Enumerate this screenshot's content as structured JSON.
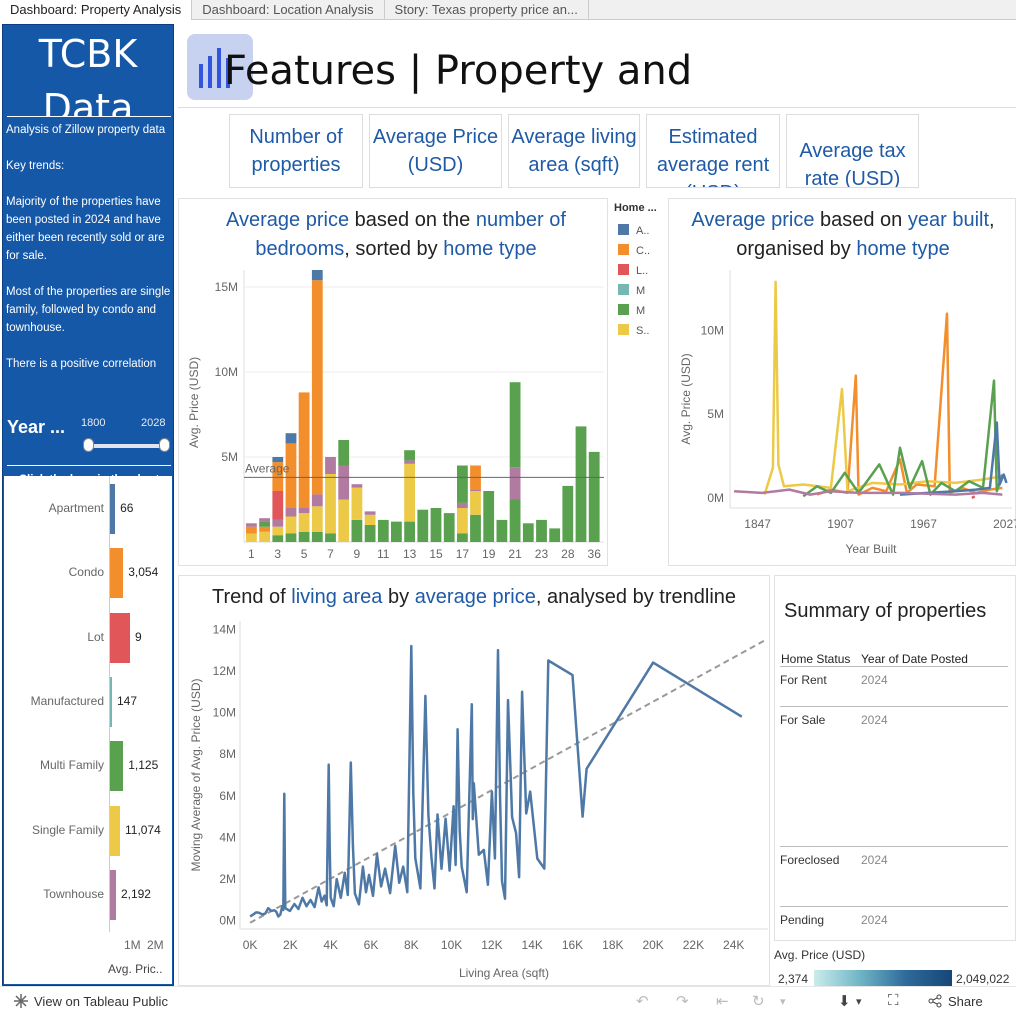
{
  "tabs": [
    "Dashboard: Property Analysis",
    "Dashboard: Location Analysis",
    "Story: Texas property price an..."
  ],
  "sidebar": {
    "brand": "TCBK Data",
    "intro": "Analysis of Zillow property data",
    "key_trends": "Key trends:",
    "trend1": "Majority of the properties have been posted in 2024 and have either been recently sold or are for sale.",
    "trend2": "Most of the properties are single family, followed by condo and townhouse.",
    "trend3": "There is a positive correlation",
    "year_label": "Year ...",
    "year_min": "1800",
    "year_max": "2028",
    "click_hint": "Click the bars in the chart below to filter by Home",
    "home_types": [
      {
        "name": "Apartment",
        "count": "66",
        "fraction": 0.19,
        "color": "#4e79a7"
      },
      {
        "name": "Condo",
        "count": "3,054",
        "fraction": 0.49,
        "color": "#f28e2b"
      },
      {
        "name": "Lot",
        "count": "9",
        "fraction": 0.74,
        "color": "#e15759"
      },
      {
        "name": "Manufactured",
        "count": "147",
        "fraction": 0.07,
        "color": "#76b7b2"
      },
      {
        "name": "Multi Family",
        "count": "1,125",
        "fraction": 0.49,
        "color": "#59a14f"
      },
      {
        "name": "Single Family",
        "count": "11,074",
        "fraction": 0.37,
        "color": "#edc948"
      },
      {
        "name": "Townhouse",
        "count": "2,192",
        "fraction": 0.22,
        "color": "#b07aa1"
      }
    ],
    "axis_ticks": [
      "1M",
      "2M"
    ],
    "axis_title": "Avg. Pric.."
  },
  "header": {
    "title_bold": "Features",
    "title_rest": "| Property and"
  },
  "kpis": [
    {
      "label": "Number of properties"
    },
    {
      "label": "Average Price (USD)"
    },
    {
      "label": "Average living area (sqft)"
    },
    {
      "label": "Estimated average rent (USD)"
    },
    {
      "label": "Average tax rate (USD)"
    }
  ],
  "bedroom_chart": {
    "title_parts": [
      "Average price",
      " based on the ",
      "number of bedrooms",
      ", sorted by ",
      "home type"
    ],
    "ylabel": "Avg. Price (USD)",
    "reference_label": "Average",
    "legend_title": "Home ...",
    "legend_items": [
      {
        "label": "A..",
        "color": "#4e79a7"
      },
      {
        "label": "C..",
        "color": "#f28e2b"
      },
      {
        "label": "L..",
        "color": "#e15759"
      },
      {
        "label": "M",
        "color": "#76b7b2"
      },
      {
        "label": "M",
        "color": "#59a14f"
      },
      {
        "label": "S..",
        "color": "#edc948"
      }
    ]
  },
  "year_chart": {
    "title_parts": [
      "Average price",
      " based on ",
      "year built",
      ",",
      "organised by ",
      "home type"
    ],
    "ylabel": "Avg. Price (USD)",
    "xlabel": "Year Built"
  },
  "trend_chart": {
    "title_parts": [
      "Trend of ",
      "living area",
      " by ",
      "average price",
      ", analysed by trendline"
    ],
    "ylabel": "Moving Average of Avg. Price (USD)",
    "xlabel": "Living Area (sqft)"
  },
  "summary": {
    "title": "Summary of properties",
    "col1": "Home Status",
    "col2": "Year of Date Posted",
    "rows": [
      {
        "status": "For Rent",
        "year": "2024"
      },
      {
        "status": "For Sale",
        "year": "2024"
      },
      {
        "status": "Foreclosed",
        "year": "2024"
      },
      {
        "status": "Pending",
        "year": "2024"
      }
    ],
    "legend_title": "Avg. Price (USD)",
    "legend_min": "2,374",
    "legend_max": "2,049,022"
  },
  "footer": {
    "tableau_link": "View on Tableau Public",
    "share": "Share"
  },
  "chart_data": [
    {
      "type": "bar",
      "title": "Average price based on the number of bedrooms, sorted by home type",
      "xlabel": "Number of bedrooms",
      "ylabel": "Avg. Price (USD)",
      "ylim": [
        0,
        16000000
      ],
      "yticks": [
        {
          "label": "15M",
          "value": 15000000
        },
        {
          "label": "10M",
          "value": 10000000
        },
        {
          "label": "5M",
          "value": 5000000
        }
      ],
      "xtick_labels": {
        "1": "1",
        "3": "3",
        "5": "5",
        "7": "7",
        "9": "9",
        "11": "11",
        "13": "13",
        "15": "15",
        "17": "17",
        "19": "19",
        "21": "21",
        "23": "23",
        "25": "28",
        "27": "36"
      },
      "reference_line": 3800000,
      "series_colors": {
        "A": "#4e79a7",
        "C": "#f28e2b",
        "L": "#e15759",
        "T": "#76b7b2",
        "M": "#59a14f",
        "S": "#edc948",
        "W": "#b07aa1"
      },
      "bars": [
        [
          [
            "S",
            0.5
          ],
          [
            "C",
            0.4
          ],
          [
            "W",
            0.2
          ]
        ],
        [
          [
            "S",
            0.6
          ],
          [
            "C",
            0.3
          ],
          [
            "M",
            0.3
          ],
          [
            "W",
            0.2
          ]
        ],
        [
          [
            "M",
            0.4
          ],
          [
            "S",
            0.5
          ],
          [
            "W",
            0.4
          ],
          [
            "L",
            1.7
          ],
          [
            "C",
            1.7
          ],
          [
            "A",
            0.3
          ]
        ],
        [
          [
            "M",
            0.5
          ],
          [
            "S",
            1.0
          ],
          [
            "W",
            0.5
          ],
          [
            "C",
            3.8
          ],
          [
            "A",
            0.6
          ]
        ],
        [
          [
            "M",
            0.6
          ],
          [
            "S",
            1.1
          ],
          [
            "W",
            0.3
          ],
          [
            "C",
            6.8
          ]
        ],
        [
          [
            "M",
            0.6
          ],
          [
            "S",
            1.5
          ],
          [
            "W",
            0.7
          ],
          [
            "C",
            12.6
          ],
          [
            "A",
            0.6
          ]
        ],
        [
          [
            "M",
            0.5
          ],
          [
            "S",
            3.5
          ],
          [
            "W",
            1.0
          ]
        ],
        [
          [
            "S",
            2.5
          ],
          [
            "W",
            2.0
          ],
          [
            "M",
            1.5
          ]
        ],
        [
          [
            "M",
            1.3
          ],
          [
            "S",
            1.9
          ],
          [
            "W",
            0.2
          ]
        ],
        [
          [
            "M",
            1.0
          ],
          [
            "S",
            0.6
          ],
          [
            "W",
            0.2
          ]
        ],
        [
          [
            "M",
            1.3
          ]
        ],
        [
          [
            "M",
            1.2
          ]
        ],
        [
          [
            "M",
            1.2
          ],
          [
            "S",
            3.4
          ],
          [
            "W",
            0.2
          ],
          [
            "M",
            0.6
          ]
        ],
        [
          [
            "M",
            1.9
          ]
        ],
        [
          [
            "M",
            2.0
          ]
        ],
        [
          [
            "M",
            1.7
          ]
        ],
        [
          [
            "M",
            0.5
          ],
          [
            "S",
            1.5
          ],
          [
            "W",
            0.3
          ],
          [
            "M",
            2.2
          ]
        ],
        [
          [
            "M",
            1.6
          ],
          [
            "S",
            1.4
          ],
          [
            "W",
            0.1
          ],
          [
            "C",
            1.4
          ]
        ],
        [
          [
            "M",
            3.0
          ]
        ],
        [
          [
            "M",
            1.3
          ]
        ],
        [
          [
            "M",
            2.5
          ],
          [
            "W",
            1.9
          ],
          [
            "M",
            5.0
          ]
        ],
        [
          [
            "M",
            1.1
          ]
        ],
        [
          [
            "M",
            1.3
          ]
        ],
        [
          [
            "M",
            0.8
          ]
        ],
        [
          [
            "M",
            3.3
          ]
        ],
        [
          [
            "M",
            6.8
          ]
        ],
        [
          [
            "M",
            5.3
          ]
        ]
      ]
    },
    {
      "type": "line",
      "title": "Average price based on year built, organised by home type",
      "xlabel": "Year Built",
      "ylabel": "Avg. Price (USD)",
      "xlim": [
        1827,
        2031
      ],
      "ylim": [
        -600000,
        13600000
      ],
      "xticks": [
        1847,
        1907,
        1967,
        2027
      ],
      "yticks": [
        {
          "label": "10M",
          "value": 10000000
        },
        {
          "label": "5M",
          "value": 5000000
        },
        {
          "label": "0M",
          "value": 0
        }
      ],
      "series": [
        {
          "name": "Condo",
          "color": "#f28e2b",
          "points": [
            [
              1890,
              0.2
            ],
            [
              1900,
              0.5
            ],
            [
              1912,
              0.3
            ],
            [
              1918,
              7.3
            ],
            [
              1920,
              0.2
            ],
            [
              1930,
              0.6
            ],
            [
              1940,
              0.4
            ],
            [
              1950,
              2.3
            ],
            [
              1955,
              0.3
            ],
            [
              1962,
              0.8
            ],
            [
              1975,
              0.7
            ],
            [
              1984,
              11.0
            ],
            [
              1986,
              0.3
            ],
            [
              1995,
              0.6
            ],
            [
              2005,
              0.3
            ],
            [
              2015,
              0.5
            ],
            [
              2024,
              0.6
            ]
          ]
        },
        {
          "name": "Single Family",
          "color": "#edc948",
          "points": [
            [
              1852,
              0.2
            ],
            [
              1858,
              1.8
            ],
            [
              1860,
              12.9
            ],
            [
              1862,
              2.0
            ],
            [
              1866,
              0.7
            ],
            [
              1880,
              0.8
            ],
            [
              1900,
              0.6
            ],
            [
              1908,
              6.5
            ],
            [
              1912,
              0.4
            ],
            [
              1930,
              0.9
            ],
            [
              1950,
              0.8
            ],
            [
              1970,
              1.0
            ],
            [
              1990,
              0.9
            ],
            [
              2010,
              1.1
            ],
            [
              2024,
              1.3
            ]
          ]
        },
        {
          "name": "Multi Family",
          "color": "#59a14f",
          "points": [
            [
              1880,
              0.1
            ],
            [
              1890,
              0.7
            ],
            [
              1900,
              0.3
            ],
            [
              1910,
              1.5
            ],
            [
              1920,
              0.3
            ],
            [
              1935,
              2.0
            ],
            [
              1945,
              0.2
            ],
            [
              1950,
              3.0
            ],
            [
              1957,
              0.6
            ],
            [
              1966,
              2.2
            ],
            [
              1972,
              0.2
            ],
            [
              1980,
              0.9
            ],
            [
              1990,
              0.4
            ],
            [
              2000,
              1.0
            ],
            [
              2010,
              0.6
            ],
            [
              2018,
              7.0
            ],
            [
              2020,
              0.4
            ],
            [
              2024,
              1.4
            ]
          ]
        },
        {
          "name": "Apartment",
          "color": "#4e79a7",
          "points": [
            [
              1950,
              0.2
            ],
            [
              1970,
              0.3
            ],
            [
              1990,
              0.4
            ],
            [
              2005,
              0.5
            ],
            [
              2015,
              0.6
            ],
            [
              2020,
              4.5
            ],
            [
              2022,
              0.8
            ],
            [
              2025,
              1.4
            ],
            [
              2027,
              0.9
            ]
          ]
        },
        {
          "name": "Townhouse",
          "color": "#b07aa1",
          "points": [
            [
              1830,
              0.4
            ],
            [
              1850,
              0.3
            ],
            [
              1870,
              0.5
            ],
            [
              1885,
              0.2
            ],
            [
              1900,
              0.4
            ],
            [
              1920,
              0.3
            ],
            [
              1950,
              0.3
            ],
            [
              1990,
              0.2
            ],
            [
              2010,
              0.3
            ],
            [
              2024,
              0.2
            ]
          ]
        },
        {
          "name": "Lot",
          "color": "#e15759",
          "points": [
            [
              2002,
              0.0
            ],
            [
              2004,
              0.1
            ]
          ]
        }
      ]
    },
    {
      "type": "line",
      "title": "Trend of living area by average price, analysed by trendline",
      "xlabel": "Living Area (sqft)",
      "ylabel": "Moving Average of Avg. Price (USD)",
      "xlim": [
        -500,
        25700
      ],
      "ylim": [
        -400000,
        14400000
      ],
      "xticks": [
        0,
        2000,
        4000,
        6000,
        8000,
        10000,
        12000,
        14000,
        16000,
        18000,
        20000,
        22000,
        24000
      ],
      "yticks": [
        0,
        2000000,
        4000000,
        6000000,
        8000000,
        10000000,
        12000000,
        14000000
      ],
      "trendline": [
        [
          0,
          -100000
        ],
        [
          25600,
          13500000
        ]
      ],
      "points": [
        [
          0,
          0.2
        ],
        [
          300,
          0.4
        ],
        [
          600,
          0.3
        ],
        [
          900,
          0.6
        ],
        [
          1200,
          0.5
        ],
        [
          1400,
          0.2
        ],
        [
          1600,
          0.7
        ],
        [
          1700,
          6.1
        ],
        [
          1750,
          0.6
        ],
        [
          2200,
          0.8
        ],
        [
          2600,
          1.1
        ],
        [
          3000,
          1.0
        ],
        [
          3400,
          1.6
        ],
        [
          3700,
          1.2
        ],
        [
          3900,
          7.5
        ],
        [
          4000,
          1.1
        ],
        [
          4300,
          2.0
        ],
        [
          4700,
          2.3
        ],
        [
          5000,
          7.6
        ],
        [
          5200,
          1.3
        ],
        [
          5600,
          2.6
        ],
        [
          5900,
          2.2
        ],
        [
          6300,
          3.2
        ],
        [
          6700,
          2.5
        ],
        [
          7200,
          3.6
        ],
        [
          7600,
          2.6
        ],
        [
          8000,
          13.2
        ],
        [
          8200,
          3.0
        ],
        [
          8700,
          10.8
        ],
        [
          9000,
          3.0
        ],
        [
          9300,
          5.1
        ],
        [
          9700,
          4.9
        ],
        [
          10100,
          5.5
        ],
        [
          10300,
          9.2
        ],
        [
          10500,
          2.6
        ],
        [
          11000,
          10.4
        ],
        [
          11100,
          6.6
        ],
        [
          11600,
          3.4
        ],
        [
          12000,
          6.2
        ],
        [
          12300,
          13.0
        ],
        [
          12500,
          1.9
        ],
        [
          12800,
          10.6
        ],
        [
          13200,
          4.2
        ],
        [
          13500,
          11.0
        ],
        [
          13900,
          6.2
        ],
        [
          14600,
          2.5
        ],
        [
          14800,
          12.5
        ],
        [
          16000,
          11.8
        ],
        [
          16500,
          5.0
        ],
        [
          16700,
          7.3
        ],
        [
          20000,
          12.4
        ],
        [
          24400,
          9.8
        ]
      ]
    }
  ]
}
